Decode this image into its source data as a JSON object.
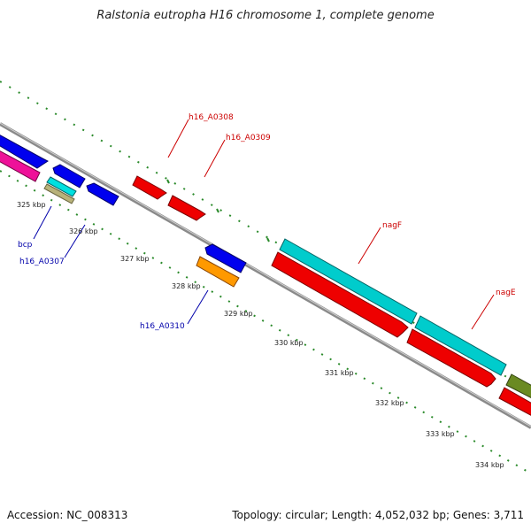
{
  "title": "Ralstonia eutropha H16 chromosome 1, complete genome",
  "footer": {
    "accession": "Accession: NC_008313",
    "summary": "Topology: circular; Length: 4,052,032 bp; Genes: 3,711"
  },
  "colors": {
    "backbone": "#8a8a8a",
    "tick": "#2a8a2a",
    "label_forward": "#cc0000",
    "label_reverse": "#0000aa"
  },
  "kbp_ticks": [
    "325 kbp",
    "326 kbp",
    "327 kbp",
    "328 kbp",
    "329 kbp",
    "330 kbp",
    "331 kbp",
    "332 kbp",
    "333 kbp",
    "334 kbp"
  ],
  "gene_labels": [
    {
      "id": "h16_A0308",
      "text": "h16_A0308",
      "strand": "forward"
    },
    {
      "id": "h16_A0309",
      "text": "h16_A0309",
      "strand": "forward"
    },
    {
      "id": "nagF",
      "text": "nagF",
      "strand": "forward"
    },
    {
      "id": "nagE",
      "text": "nagE",
      "strand": "forward"
    },
    {
      "id": "bcp",
      "text": "bcp",
      "strand": "reverse"
    },
    {
      "id": "h16_A0307",
      "text": "h16_A0307",
      "strand": "reverse"
    },
    {
      "id": "h16_A0310",
      "text": "h16_A0310",
      "strand": "reverse"
    }
  ]
}
